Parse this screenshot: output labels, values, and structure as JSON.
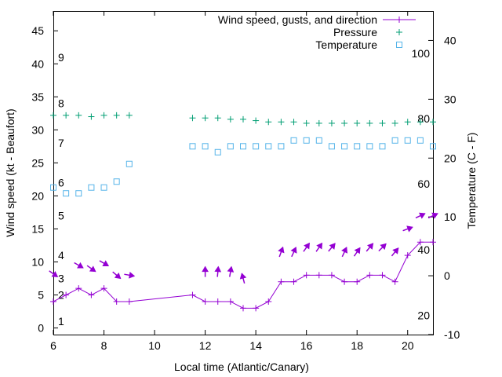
{
  "chart_data": {
    "type": "line",
    "xlabel": "Local time (Atlantic/Canary)",
    "ylabel": "Wind speed (kt - Beaufort)",
    "y2label": "Temperature (C - F)",
    "xlim": [
      6,
      21
    ],
    "ylim": [
      -1,
      48
    ],
    "y2lim": [
      -10,
      45
    ],
    "xticks": [
      6,
      8,
      10,
      12,
      14,
      16,
      18,
      20
    ],
    "yticks": [
      0,
      5,
      10,
      15,
      20,
      25,
      30,
      35,
      40,
      45
    ],
    "y2ticks": [
      -10,
      0,
      10,
      20,
      30,
      40
    ],
    "grid": false,
    "legend_position": "top-right",
    "beaufort_labels": [
      {
        "label": "1",
        "y": 1.0
      },
      {
        "label": "2",
        "y": 5.0
      },
      {
        "label": "3",
        "y": 7.5
      },
      {
        "label": "4",
        "y": 11.0
      },
      {
        "label": "5",
        "y": 17.0
      },
      {
        "label": "6",
        "y": 22.0
      },
      {
        "label": "7",
        "y": 28.0
      },
      {
        "label": "8",
        "y": 34.0
      },
      {
        "label": "9",
        "y": 41.0
      }
    ],
    "fahrenheit_labels": [
      {
        "label": "20",
        "y2": -6.7
      },
      {
        "label": "40",
        "y2": 4.4
      },
      {
        "label": "60",
        "y2": 15.6
      },
      {
        "label": "80",
        "y2": 26.7
      },
      {
        "label": "100",
        "y2": 37.8
      }
    ],
    "series": [
      {
        "name": "Wind speed, gusts, and direction",
        "color": "#9400d3",
        "style": "line+plus",
        "x": [
          6,
          6.5,
          7,
          7.5,
          8,
          8.5,
          9,
          11.5,
          12,
          12.5,
          13,
          13.5,
          14,
          14.5,
          15,
          15.5,
          16,
          16.5,
          17,
          17.5,
          18,
          18.5,
          19,
          19.5,
          20,
          20.5,
          21
        ],
        "y": [
          4,
          5,
          6,
          5,
          6,
          4,
          4,
          5,
          4,
          4,
          4,
          3,
          3,
          4,
          7,
          7,
          8,
          8,
          8,
          7,
          7,
          8,
          8,
          7,
          11,
          13,
          13
        ]
      },
      {
        "name": "Pressure",
        "color": "#009e73",
        "style": "plus",
        "axis": "left",
        "x": [
          6,
          6.5,
          7,
          7.5,
          8,
          8.5,
          9,
          11.5,
          12,
          12.5,
          13,
          13.5,
          14,
          14.5,
          15,
          15.5,
          16,
          16.5,
          17,
          17.5,
          18,
          18.5,
          19,
          19.5,
          20,
          20.5,
          21
        ],
        "y": [
          32.2,
          32.2,
          32.2,
          32.0,
          32.2,
          32.2,
          32.2,
          31.8,
          31.8,
          31.8,
          31.6,
          31.6,
          31.4,
          31.2,
          31.2,
          31.2,
          31.0,
          31.0,
          31.0,
          31.0,
          31.0,
          31.0,
          31.0,
          31.0,
          31.2,
          31.2,
          31.2
        ]
      },
      {
        "name": "Temperature",
        "color": "#56b4e9",
        "style": "square",
        "axis": "right",
        "x": [
          6,
          6.5,
          7,
          7.5,
          8,
          8.5,
          9,
          11.5,
          12,
          12.5,
          13,
          13.5,
          14,
          14.5,
          15,
          15.5,
          16,
          16.5,
          17,
          17.5,
          18,
          18.5,
          19,
          19.5,
          20,
          20.5,
          21
        ],
        "y": [
          15,
          14,
          14,
          15,
          15,
          16,
          19,
          22,
          22,
          21,
          22,
          22,
          22,
          22,
          22,
          23,
          23,
          23,
          22,
          22,
          22,
          22,
          22,
          23,
          23,
          23,
          22
        ]
      }
    ],
    "wind_directions": {
      "color": "#9400d3",
      "x": [
        6,
        7,
        7.5,
        8,
        8.5,
        9,
        12,
        12.5,
        13,
        13.5,
        15,
        15.5,
        16,
        16.5,
        17,
        17.5,
        18,
        18.5,
        19,
        19.5,
        20,
        20.5,
        21
      ],
      "y": [
        8.2,
        9.5,
        9.0,
        9.8,
        8.0,
        8.0,
        8.5,
        8.5,
        8.5,
        7.5,
        11.5,
        11.5,
        12.2,
        12.2,
        12.2,
        11.5,
        11.5,
        12.2,
        12.2,
        11.5,
        15.0,
        17.0,
        17.0
      ],
      "toward_deg": [
        -35,
        -30,
        -35,
        -30,
        -40,
        -10,
        90,
        85,
        80,
        105,
        70,
        65,
        55,
        55,
        50,
        65,
        55,
        50,
        45,
        50,
        20,
        25,
        25
      ]
    }
  }
}
